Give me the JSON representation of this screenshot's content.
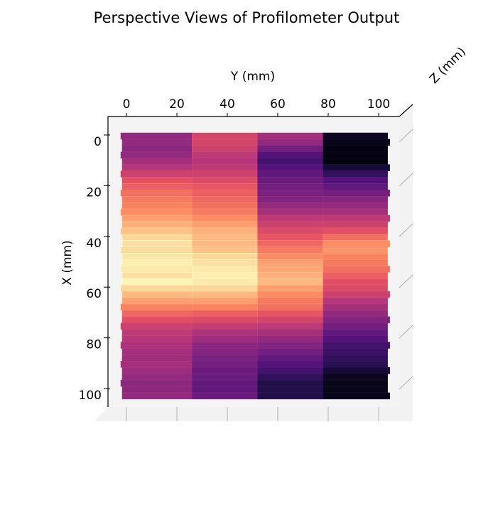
{
  "chart_data": {
    "type": "heatmap",
    "title": "Perspective Views of Profilometer Output",
    "xlabel": "Y (mm)",
    "ylabel": "X (mm)",
    "zlabel": "Z (mm)",
    "colormap": "magma",
    "y_ticks": [
      0,
      20,
      40,
      60,
      80,
      100
    ],
    "x_ticks": [
      0,
      20,
      40,
      60,
      80,
      100
    ],
    "y_range": [
      0,
      103
    ],
    "x_range": [
      0,
      103
    ],
    "band_edges_y": [
      0,
      26,
      52,
      78,
      103
    ],
    "row_step_x": 2.5,
    "band_profiles": [
      [
        0.42,
        0.42,
        0.4,
        0.42,
        0.46,
        0.5,
        0.56,
        0.62,
        0.66,
        0.7,
        0.72,
        0.74,
        0.76,
        0.8,
        0.84,
        0.88,
        0.92,
        0.94,
        0.93,
        0.95,
        0.97,
        0.96,
        0.94,
        0.98,
        0.92,
        0.86,
        0.8,
        0.74,
        0.68,
        0.62,
        0.56,
        0.52,
        0.5,
        0.48,
        0.46,
        0.45,
        0.46,
        0.44,
        0.42,
        0.4,
        0.4,
        0.42
      ],
      [
        0.58,
        0.58,
        0.56,
        0.52,
        0.5,
        0.52,
        0.56,
        0.6,
        0.64,
        0.66,
        0.68,
        0.7,
        0.72,
        0.76,
        0.8,
        0.84,
        0.86,
        0.86,
        0.88,
        0.92,
        0.94,
        0.96,
        0.97,
        0.96,
        0.92,
        0.86,
        0.8,
        0.74,
        0.66,
        0.6,
        0.54,
        0.48,
        0.44,
        0.4,
        0.38,
        0.36,
        0.34,
        0.32,
        0.32,
        0.3,
        0.3,
        0.32
      ],
      [
        0.46,
        0.42,
        0.34,
        0.26,
        0.22,
        0.26,
        0.3,
        0.32,
        0.34,
        0.36,
        0.38,
        0.42,
        0.46,
        0.52,
        0.56,
        0.6,
        0.64,
        0.68,
        0.72,
        0.76,
        0.8,
        0.82,
        0.84,
        0.86,
        0.8,
        0.76,
        0.72,
        0.7,
        0.64,
        0.58,
        0.52,
        0.46,
        0.42,
        0.38,
        0.34,
        0.3,
        0.26,
        0.22,
        0.18,
        0.14,
        0.14,
        0.14
      ],
      [
        0.06,
        0.04,
        0.02,
        0.02,
        0.02,
        0.1,
        0.18,
        0.26,
        0.3,
        0.34,
        0.38,
        0.42,
        0.46,
        0.52,
        0.56,
        0.62,
        0.7,
        0.76,
        0.78,
        0.74,
        0.72,
        0.7,
        0.66,
        0.62,
        0.6,
        0.56,
        0.5,
        0.46,
        0.42,
        0.38,
        0.34,
        0.3,
        0.26,
        0.22,
        0.2,
        0.18,
        0.16,
        0.1,
        0.06,
        0.04,
        0.04,
        0.04
      ]
    ]
  }
}
